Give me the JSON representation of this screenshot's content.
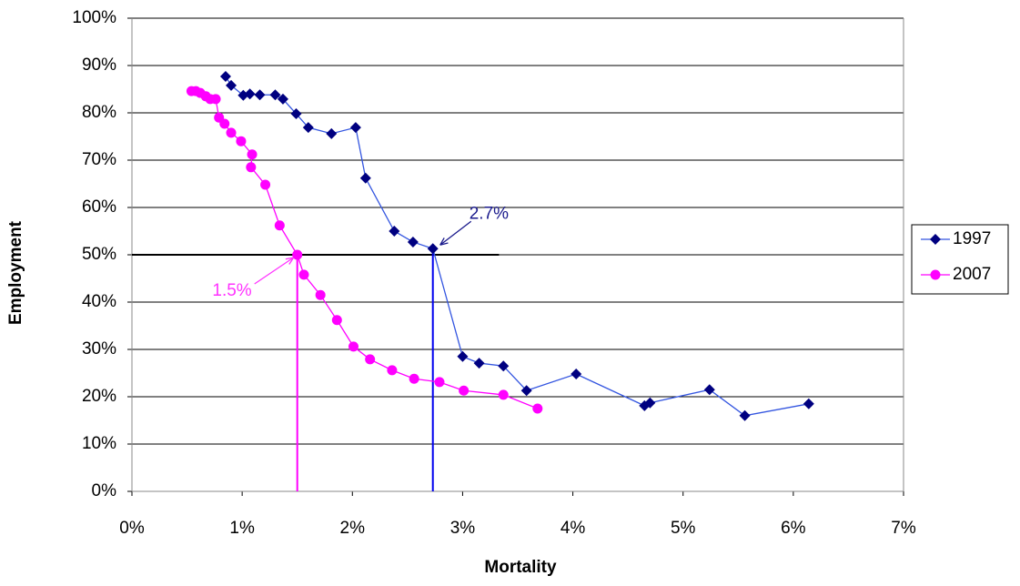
{
  "chart_data": {
    "type": "scatter",
    "xlabel": "Mortality",
    "ylabel": "Employment",
    "xlim": [
      0,
      7
    ],
    "ylim": [
      0,
      100
    ],
    "xticks": [
      {
        "value": 0,
        "label": "0%"
      },
      {
        "value": 1,
        "label": "1%"
      },
      {
        "value": 2,
        "label": "2%"
      },
      {
        "value": 3,
        "label": "3%"
      },
      {
        "value": 4,
        "label": "4%"
      },
      {
        "value": 5,
        "label": "5%"
      },
      {
        "value": 6,
        "label": "6%"
      },
      {
        "value": 7,
        "label": "7%"
      }
    ],
    "yticks": [
      {
        "value": 0,
        "label": "0%"
      },
      {
        "value": 10,
        "label": "10%"
      },
      {
        "value": 20,
        "label": "20%"
      },
      {
        "value": 30,
        "label": "30%"
      },
      {
        "value": 40,
        "label": "40%"
      },
      {
        "value": 50,
        "label": "50%"
      },
      {
        "value": 60,
        "label": "60%"
      },
      {
        "value": 70,
        "label": "70%"
      },
      {
        "value": 80,
        "label": "80%"
      },
      {
        "value": 90,
        "label": "90%"
      },
      {
        "value": 100,
        "label": "100%"
      }
    ],
    "grid": true,
    "legend": "right",
    "series": [
      {
        "name": "1997",
        "color": "#000080",
        "line_color": "#3355e0",
        "marker": "diamond",
        "x": [
          0.85,
          0.9,
          1.01,
          1.07,
          1.16,
          1.3,
          1.37,
          1.49,
          1.6,
          1.81,
          2.03,
          2.12,
          2.38,
          2.55,
          2.73,
          3.0,
          3.15,
          3.37,
          3.58,
          4.03,
          4.65,
          4.7,
          5.24,
          5.56,
          6.14
        ],
        "values": [
          87.7,
          85.8,
          83.7,
          84.0,
          83.8,
          83.8,
          82.9,
          79.8,
          76.9,
          75.6,
          76.9,
          66.2,
          55.0,
          52.7,
          51.3,
          28.5,
          27.1,
          26.5,
          21.3,
          24.8,
          18.1,
          18.7,
          21.5,
          16.0,
          18.5
        ]
      },
      {
        "name": "2007",
        "color": "#ff00ff",
        "line_color": "#ff00ff",
        "marker": "circle",
        "x": [
          0.54,
          0.58,
          0.62,
          0.67,
          0.71,
          0.76,
          0.79,
          0.84,
          0.9,
          0.99,
          1.09,
          1.08,
          1.21,
          1.34,
          1.5,
          1.56,
          1.71,
          1.86,
          2.01,
          2.16,
          2.36,
          2.56,
          2.79,
          3.01,
          3.37,
          3.68
        ],
        "values": [
          84.6,
          84.6,
          84.2,
          83.5,
          82.9,
          82.9,
          79.0,
          77.7,
          75.8,
          74.0,
          71.2,
          68.5,
          64.8,
          56.2,
          50.0,
          45.8,
          41.5,
          36.2,
          30.6,
          27.9,
          25.6,
          23.8,
          23.1,
          21.3,
          20.4,
          17.5
        ]
      }
    ],
    "reference_line": {
      "y": 50,
      "xlim": [
        0,
        3.33
      ]
    },
    "annotations": [
      {
        "text": "2.7%",
        "x": 2.73,
        "y": 51.3,
        "color": "#1a1a8c"
      },
      {
        "text": "1.5%",
        "x": 1.5,
        "y": 50,
        "color": "#ff33ff"
      }
    ]
  }
}
